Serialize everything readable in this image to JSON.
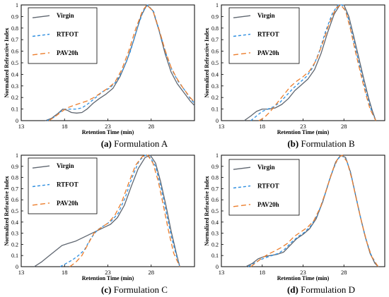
{
  "series_styles": [
    {
      "name": "Virgin",
      "color": "#5f6670",
      "dash": ""
    },
    {
      "name": "RTFOT",
      "color": "#2f8fe0",
      "dash": "4,3"
    },
    {
      "name": "PAV20h",
      "color": "#ec7d2b",
      "dash": "7,4"
    }
  ],
  "chart_data": [
    {
      "type": "line",
      "panel_label": "(a)",
      "caption": "Formulation A",
      "xlabel": "Retention Time (min)",
      "ylabel": "Normalized Refractive Index",
      "xlim": [
        13,
        33
      ],
      "ylim": [
        0,
        1
      ],
      "xticks": [
        "13",
        "18",
        "23",
        "28"
      ],
      "yticks": [
        "0",
        "0.1",
        "0.2",
        "0.3",
        "0.4",
        "0.5",
        "0.6",
        "0.7",
        "0.8",
        "0.9",
        "1"
      ],
      "legend": [
        "Virgin",
        "RTFOT",
        "PAV20h"
      ],
      "series": [
        {
          "name": "Virgin",
          "x": [
            15.8,
            16.5,
            17.2,
            17.8,
            18.3,
            18.8,
            19.4,
            20.0,
            20.6,
            21.3,
            22.0,
            22.8,
            23.6,
            24.4,
            25.2,
            26.0,
            26.8,
            27.5,
            28.2,
            28.9,
            29.6,
            30.3,
            31.0,
            31.7,
            32.5,
            33.0
          ],
          "y": [
            0,
            0.02,
            0.06,
            0.1,
            0.09,
            0.07,
            0.065,
            0.07,
            0.1,
            0.15,
            0.19,
            0.23,
            0.28,
            0.38,
            0.52,
            0.7,
            0.9,
            1.0,
            0.95,
            0.78,
            0.58,
            0.42,
            0.32,
            0.25,
            0.17,
            0.13
          ]
        },
        {
          "name": "RTFOT",
          "x": [
            16.0,
            16.8,
            17.4,
            18.0,
            18.6,
            19.3,
            20.0,
            20.8,
            21.6,
            22.4,
            23.2,
            24.0,
            24.8,
            25.6,
            26.4,
            27.1,
            27.6,
            28.3,
            29.0,
            29.7,
            30.4,
            31.1,
            31.8,
            32.5,
            33.0
          ],
          "y": [
            0,
            0.03,
            0.07,
            0.1,
            0.1,
            0.1,
            0.11,
            0.15,
            0.2,
            0.25,
            0.28,
            0.34,
            0.45,
            0.6,
            0.8,
            0.95,
            1.0,
            0.94,
            0.76,
            0.58,
            0.44,
            0.34,
            0.27,
            0.19,
            0.15
          ]
        },
        {
          "name": "PAV20h",
          "x": [
            16.2,
            17.0,
            17.7,
            18.3,
            19.0,
            19.8,
            20.6,
            21.4,
            22.2,
            23.0,
            23.8,
            24.6,
            25.4,
            26.2,
            27.0,
            27.5,
            28.2,
            28.9,
            29.6,
            30.3,
            31.0,
            31.7,
            32.5,
            33.0
          ],
          "y": [
            0,
            0.04,
            0.08,
            0.11,
            0.13,
            0.15,
            0.17,
            0.2,
            0.24,
            0.28,
            0.33,
            0.44,
            0.6,
            0.79,
            0.95,
            1.0,
            0.95,
            0.79,
            0.61,
            0.46,
            0.36,
            0.28,
            0.2,
            0.16
          ]
        }
      ]
    },
    {
      "type": "line",
      "panel_label": "(b)",
      "caption": "Formulation B",
      "xlabel": "Retention Time (min)",
      "ylabel": "Normalized Refractive Index",
      "xlim": [
        13,
        33
      ],
      "ylim": [
        0,
        1
      ],
      "xticks": [
        "13",
        "18",
        "23",
        "28"
      ],
      "yticks": [
        "0",
        "0.1",
        "0.2",
        "0.3",
        "0.4",
        "0.5",
        "0.6",
        "0.7",
        "0.8",
        "0.9",
        "1"
      ],
      "legend": [
        "Virgin",
        "RTFOT",
        "PAV20h"
      ],
      "series": [
        {
          "name": "Virgin",
          "x": [
            15.8,
            16.6,
            17.3,
            18.0,
            18.8,
            19.6,
            20.4,
            21.2,
            22.0,
            22.8,
            23.6,
            24.4,
            25.2,
            26.0,
            26.8,
            27.5,
            28.0,
            28.6,
            29.2,
            29.8,
            30.4,
            31.0,
            31.5,
            31.9
          ],
          "y": [
            0,
            0.04,
            0.08,
            0.1,
            0.1,
            0.11,
            0.14,
            0.19,
            0.26,
            0.31,
            0.36,
            0.44,
            0.58,
            0.76,
            0.92,
            1.0,
            1.0,
            0.9,
            0.73,
            0.55,
            0.37,
            0.2,
            0.08,
            0
          ]
        },
        {
          "name": "RTFOT",
          "x": [
            16.6,
            17.3,
            18.0,
            18.7,
            19.4,
            20.2,
            21.0,
            21.8,
            22.6,
            23.4,
            24.2,
            25.0,
            25.8,
            26.6,
            27.3,
            27.8,
            28.4,
            29.0,
            29.6,
            30.2,
            30.8,
            31.4,
            31.9
          ],
          "y": [
            0,
            0.04,
            0.08,
            0.1,
            0.12,
            0.16,
            0.22,
            0.28,
            0.33,
            0.38,
            0.46,
            0.6,
            0.78,
            0.93,
            1.0,
            1.0,
            0.92,
            0.75,
            0.57,
            0.39,
            0.22,
            0.08,
            0
          ]
        },
        {
          "name": "PAV20h",
          "x": [
            17.6,
            18.3,
            19.0,
            19.8,
            20.6,
            21.4,
            22.2,
            23.0,
            23.8,
            24.6,
            25.4,
            26.2,
            27.0,
            27.6,
            28.2,
            28.8,
            29.4,
            30.0,
            30.6,
            31.2,
            31.9
          ],
          "y": [
            0,
            0.03,
            0.08,
            0.15,
            0.22,
            0.29,
            0.34,
            0.38,
            0.43,
            0.52,
            0.67,
            0.84,
            0.97,
            1.0,
            0.95,
            0.79,
            0.6,
            0.42,
            0.25,
            0.1,
            0
          ]
        }
      ]
    },
    {
      "type": "line",
      "panel_label": "(c)",
      "caption": "Formulation C",
      "xlabel": "Retention Time (min)",
      "ylabel": "Normalized Refractive Index",
      "xlim": [
        13,
        33
      ],
      "ylim": [
        0,
        1
      ],
      "xticks": [
        "13",
        "18",
        "23",
        "28"
      ],
      "yticks": [
        "0",
        "0.1",
        "0.2",
        "0.3",
        "0.4",
        "0.5",
        "0.6",
        "0.7",
        "0.8",
        "0.9",
        "1"
      ],
      "legend": [
        "Virgin",
        "RTFOT",
        "PAV20h"
      ],
      "series": [
        {
          "name": "Virgin",
          "x": [
            14.5,
            15.3,
            16.1,
            16.9,
            17.7,
            18.5,
            19.3,
            20.1,
            20.9,
            21.7,
            22.5,
            23.3,
            24.1,
            24.9,
            25.7,
            26.5,
            27.3,
            27.9,
            28.5,
            29.1,
            29.7,
            30.3,
            30.9,
            31.3
          ],
          "y": [
            0,
            0.04,
            0.09,
            0.14,
            0.19,
            0.21,
            0.23,
            0.26,
            0.29,
            0.32,
            0.35,
            0.38,
            0.44,
            0.55,
            0.72,
            0.88,
            0.98,
            1.0,
            0.93,
            0.76,
            0.55,
            0.32,
            0.12,
            0
          ]
        },
        {
          "name": "RTFOT",
          "x": [
            17.5,
            18.2,
            18.9,
            19.6,
            20.3,
            21.0,
            21.8,
            22.6,
            23.4,
            24.2,
            25.0,
            25.8,
            26.6,
            27.3,
            27.9,
            28.5,
            29.1,
            29.7,
            30.3,
            30.9,
            31.3
          ],
          "y": [
            0,
            0.03,
            0.06,
            0.1,
            0.15,
            0.25,
            0.33,
            0.37,
            0.41,
            0.48,
            0.62,
            0.8,
            0.95,
            1.0,
            0.98,
            0.9,
            0.72,
            0.5,
            0.28,
            0.1,
            0
          ]
        },
        {
          "name": "PAV20h",
          "x": [
            18.6,
            19.3,
            20.0,
            20.7,
            21.4,
            22.2,
            23.0,
            23.8,
            24.6,
            25.4,
            26.2,
            27.0,
            27.6,
            28.2,
            28.8,
            29.4,
            30.0,
            30.6,
            31.3
          ],
          "y": [
            0,
            0.04,
            0.1,
            0.2,
            0.3,
            0.35,
            0.39,
            0.46,
            0.58,
            0.75,
            0.91,
            0.99,
            1.0,
            0.93,
            0.77,
            0.55,
            0.32,
            0.12,
            0
          ]
        }
      ]
    },
    {
      "type": "line",
      "panel_label": "(d)",
      "caption": "Formulation D",
      "xlabel": "Retention Time (min)",
      "ylabel": "Normalized Refractive Index",
      "xlim": [
        13,
        33
      ],
      "ylim": [
        0,
        1
      ],
      "xticks": [
        "13",
        "18",
        "23",
        "28"
      ],
      "yticks": [
        "0",
        "0.1",
        "0.2",
        "0.3",
        "0.4",
        "0.5",
        "0.6",
        "0.7",
        "0.8",
        "0.9",
        "1"
      ],
      "legend": [
        "Virgin",
        "RTFOT",
        "PAV20h"
      ],
      "series": [
        {
          "name": "Virgin",
          "x": [
            16.0,
            16.8,
            17.5,
            18.2,
            19.0,
            19.8,
            20.6,
            21.4,
            22.2,
            23.0,
            23.8,
            24.6,
            25.4,
            26.2,
            27.0,
            27.6,
            28.2,
            28.8,
            29.4,
            30.0,
            30.6,
            31.2,
            31.8,
            32.2
          ],
          "y": [
            0,
            0.03,
            0.07,
            0.09,
            0.1,
            0.11,
            0.13,
            0.19,
            0.25,
            0.29,
            0.34,
            0.43,
            0.58,
            0.77,
            0.94,
            1.0,
            0.98,
            0.85,
            0.65,
            0.45,
            0.27,
            0.12,
            0.03,
            0
          ]
        },
        {
          "name": "RTFOT",
          "x": [
            16.3,
            17.0,
            17.7,
            18.4,
            19.2,
            20.0,
            20.8,
            21.6,
            22.4,
            23.2,
            24.0,
            24.8,
            25.6,
            26.4,
            27.2,
            27.7,
            28.3,
            28.9,
            29.5,
            30.1,
            30.7,
            31.3,
            31.9,
            32.2
          ],
          "y": [
            0,
            0.03,
            0.06,
            0.08,
            0.1,
            0.12,
            0.16,
            0.22,
            0.27,
            0.31,
            0.37,
            0.47,
            0.63,
            0.82,
            0.96,
            1.0,
            0.96,
            0.82,
            0.62,
            0.42,
            0.25,
            0.11,
            0.03,
            0
          ]
        },
        {
          "name": "PAV20h",
          "x": [
            16.6,
            17.3,
            18.0,
            18.7,
            19.5,
            20.3,
            21.1,
            21.9,
            22.7,
            23.5,
            24.3,
            25.1,
            25.9,
            26.7,
            27.3,
            27.8,
            28.4,
            29.0,
            29.6,
            30.2,
            30.8,
            31.4,
            32.0,
            32.2
          ],
          "y": [
            0,
            0.04,
            0.08,
            0.11,
            0.14,
            0.17,
            0.21,
            0.27,
            0.31,
            0.35,
            0.41,
            0.53,
            0.7,
            0.88,
            0.98,
            1.0,
            0.94,
            0.78,
            0.58,
            0.39,
            0.22,
            0.09,
            0.02,
            0
          ]
        }
      ]
    }
  ]
}
